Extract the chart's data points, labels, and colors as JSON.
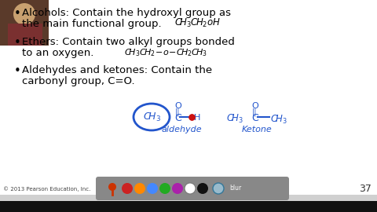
{
  "bg_color": "#d0d0d0",
  "slide_bg": "#ffffff",
  "text_color": "#000000",
  "blue_ink": "#2255cc",
  "red_dot": "#cc1111",
  "bullet1_line1": "Alcohols: Contain the hydroxyl group as",
  "bullet1_line2": "the main functional group.",
  "bullet2_line1": "Ethers: Contain two alkyl groups bonded",
  "bullet2_line2": "to an oxygen.",
  "bullet3_line1": "Aldehydes and ketones: Contain the",
  "bullet3_line2": "carbonyl group, C=O.",
  "footer": "© 2013 Pearson Education, Inc.",
  "page_num": "37",
  "toolbar_colors": [
    "#cc2222",
    "#ff8800",
    "#4488ff",
    "#22aa22",
    "#aa22aa",
    "#ffffff",
    "#111111"
  ],
  "person_color": "#5a3a2a"
}
